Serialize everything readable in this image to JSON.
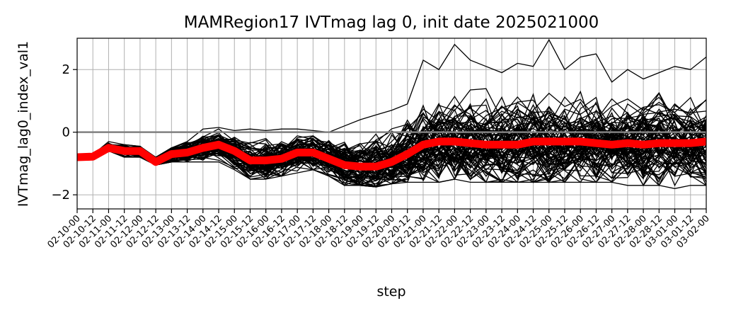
{
  "chart_data": {
    "type": "line",
    "title": "MAMRegion17 IVTmag lag 0, init date 2025021000",
    "xlabel": "step",
    "ylabel": "IVTmag_lag0_index_val1",
    "ylim": [
      -2.45,
      3.0
    ],
    "yticks": [
      -2,
      0,
      2
    ],
    "grid": true,
    "x_categories": [
      "02-10-00",
      "02-10-12",
      "02-11-00",
      "02-11-12",
      "02-12-00",
      "02-12-12",
      "02-13-00",
      "02-13-12",
      "02-14-00",
      "02-14-12",
      "02-15-00",
      "02-15-12",
      "02-16-00",
      "02-16-12",
      "02-17-00",
      "02-17-12",
      "02-18-00",
      "02-18-12",
      "02-19-00",
      "02-19-12",
      "02-20-00",
      "02-20-12",
      "02-21-00",
      "02-21-12",
      "02-22-00",
      "02-22-12",
      "02-23-00",
      "02-23-12",
      "02-24-00",
      "02-24-12",
      "02-25-00",
      "02-25-12",
      "02-26-00",
      "02-26-12",
      "02-27-00",
      "02-27-12",
      "02-28-00",
      "02-28-12",
      "03-01-00",
      "03-01-12",
      "03-02-00"
    ],
    "mean_series": {
      "color": "#ff0000",
      "values": [
        -0.8,
        -0.78,
        -0.5,
        -0.6,
        -0.6,
        -0.95,
        -0.7,
        -0.65,
        -0.5,
        -0.4,
        -0.6,
        -0.9,
        -0.9,
        -0.85,
        -0.65,
        -0.65,
        -0.85,
        -1.05,
        -1.1,
        -1.1,
        -0.95,
        -0.7,
        -0.4,
        -0.3,
        -0.3,
        -0.35,
        -0.4,
        -0.4,
        -0.4,
        -0.3,
        -0.3,
        -0.3,
        -0.3,
        -0.35,
        -0.4,
        -0.35,
        -0.4,
        -0.35,
        -0.35,
        -0.35,
        -0.3
      ]
    },
    "ensemble": {
      "color": "#000000",
      "member_count": 80,
      "spread": [
        0.05,
        0.05,
        0.1,
        0.1,
        0.12,
        0.12,
        0.15,
        0.18,
        0.2,
        0.22,
        0.25,
        0.28,
        0.3,
        0.32,
        0.32,
        0.32,
        0.35,
        0.4,
        0.45,
        0.5,
        0.55,
        0.6,
        0.65,
        0.7,
        0.72,
        0.72,
        0.72,
        0.72,
        0.72,
        0.72,
        0.72,
        0.72,
        0.72,
        0.72,
        0.72,
        0.72,
        0.72,
        0.72,
        0.72,
        0.72,
        0.72
      ],
      "max_values": [
        -0.75,
        -0.72,
        -0.3,
        -0.4,
        -0.45,
        -0.8,
        -0.5,
        -0.3,
        0.1,
        0.15,
        0.05,
        0.1,
        0.05,
        0.1,
        0.1,
        0.05,
        0.0,
        0.2,
        0.4,
        0.55,
        0.7,
        0.9,
        2.3,
        2.0,
        2.8,
        2.3,
        2.1,
        1.9,
        2.2,
        2.1,
        2.95,
        2.0,
        2.4,
        2.5,
        1.6,
        2.0,
        1.7,
        1.9,
        2.1,
        2.0,
        2.4
      ],
      "min_values": [
        -0.85,
        -0.82,
        -0.6,
        -0.8,
        -0.8,
        -1.05,
        -0.95,
        -0.95,
        -0.95,
        -0.95,
        -1.2,
        -1.5,
        -1.5,
        -1.4,
        -1.3,
        -1.2,
        -1.4,
        -1.7,
        -1.7,
        -1.75,
        -1.65,
        -1.6,
        -1.6,
        -1.6,
        -1.5,
        -1.6,
        -1.6,
        -1.6,
        -1.6,
        -1.6,
        -1.6,
        -1.6,
        -1.6,
        -1.6,
        -1.6,
        -1.7,
        -1.7,
        -1.7,
        -1.8,
        -1.7,
        -1.7
      ]
    },
    "zero_line": {
      "value": 0,
      "color": "#808080"
    }
  }
}
